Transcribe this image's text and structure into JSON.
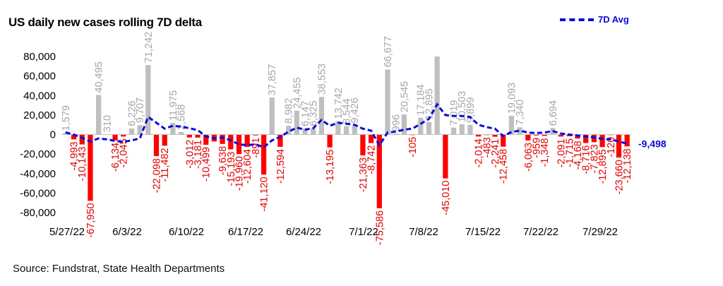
{
  "chart_data": {
    "type": "bar",
    "title": "US daily new cases rolling 7D delta",
    "legend": "7D Avg",
    "source": "Source: Fundstrat, State Health Departments",
    "ylim": [
      -80000,
      80000
    ],
    "yticks": [
      -80000,
      -60000,
      -40000,
      -20000,
      0,
      20000,
      40000,
      60000,
      80000
    ],
    "ytick_labels": [
      "-80,000",
      "-60,000",
      "-40,000",
      "-20,000",
      "0",
      "20,000",
      "40,000",
      "60,000",
      "80,000"
    ],
    "xtick_labels": [
      "5/27/22",
      "6/3/22",
      "6/10/22",
      "6/17/22",
      "6/24/22",
      "7/1/22",
      "7/8/22",
      "7/15/22",
      "7/22/22",
      "7/29/22"
    ],
    "grid": false,
    "legend_position": "top-right",
    "colors": {
      "positive": "#bfbfbf",
      "negative": "#ff0000",
      "avg_line": "#0b0bd9"
    },
    "values": [
      1579,
      -4993,
      -10143,
      -67950,
      40495,
      310,
      -6134,
      -2045,
      6226,
      9707,
      71242,
      -22098,
      -11482,
      11975,
      2568,
      -3012,
      -3181,
      -10499,
      -7100,
      -9638,
      -15193,
      -19960,
      -12604,
      -891,
      -41120,
      37857,
      -12594,
      8982,
      24455,
      6147,
      6325,
      38553,
      -13195,
      13742,
      8544,
      9426,
      -21363,
      -8742,
      -75586,
      66677,
      996,
      20545,
      -105,
      17184,
      12895,
      80000,
      -45010,
      7019,
      10503,
      9899,
      -2014,
      -483,
      -2241,
      -12458,
      19093,
      7340,
      -6063,
      -959,
      -1348,
      6694,
      -2091,
      -1715,
      -4168,
      -8716,
      -7823,
      -12895,
      -120,
      -23660,
      -12138
    ],
    "avg_end_label": "-9,498",
    "avg_line": [
      2200,
      0,
      -3500,
      -7200,
      -4000,
      -5000,
      -6500,
      -7500,
      -6000,
      -4000,
      18000,
      12000,
      6000,
      9000,
      8000,
      6500,
      4500,
      -2000,
      -4000,
      -3000,
      -6000,
      -10000,
      -11000,
      -10000,
      -13000,
      -6000,
      -2500,
      3000,
      7000,
      5000,
      6500,
      15000,
      9000,
      12000,
      11000,
      10000,
      6000,
      4000,
      -11000,
      2000,
      3000,
      5000,
      6000,
      11000,
      16000,
      31000,
      20000,
      19000,
      19000,
      18000,
      10000,
      7500,
      6000,
      -1500,
      2500,
      4000,
      2000,
      1500,
      2000,
      3500,
      1000,
      0,
      -1000,
      -2000,
      -3000,
      -4500,
      -5000,
      -7000,
      -9498
    ],
    "bar_labels": [
      {
        "i": 0,
        "text": "1,579"
      },
      {
        "i": 1,
        "text": "-4,993"
      },
      {
        "i": 2,
        "text": "-10,143"
      },
      {
        "i": 3,
        "text": "-67,950"
      },
      {
        "i": 4,
        "text": "40,495"
      },
      {
        "i": 5,
        "text": "310"
      },
      {
        "i": 6,
        "text": "-6,134"
      },
      {
        "i": 7,
        "text": "-2,045"
      },
      {
        "i": 8,
        "text": "6,226"
      },
      {
        "i": 9,
        "text": "9,707"
      },
      {
        "i": 10,
        "text": "71,242"
      },
      {
        "i": 11,
        "text": "-22,098"
      },
      {
        "i": 12,
        "text": "-11,482"
      },
      {
        "i": 13,
        "text": "11,975"
      },
      {
        "i": 14,
        "text": "2,568"
      },
      {
        "i": 15,
        "text": "-3,012"
      },
      {
        "i": 16,
        "text": "-3,181"
      },
      {
        "i": 17,
        "text": "-10,499"
      },
      {
        "i": 19,
        "text": "-9,638"
      },
      {
        "i": 20,
        "text": "-15,193"
      },
      {
        "i": 21,
        "text": "-19,960"
      },
      {
        "i": 22,
        "text": "-12,604"
      },
      {
        "i": 23,
        "text": "-891"
      },
      {
        "i": 24,
        "text": "-41,120"
      },
      {
        "i": 25,
        "text": "37,857"
      },
      {
        "i": 26,
        "text": "-12,594"
      },
      {
        "i": 27,
        "text": "8,982"
      },
      {
        "i": 28,
        "text": "24,455"
      },
      {
        "i": 29,
        "text": "6,147"
      },
      {
        "i": 30,
        "text": "6,325"
      },
      {
        "i": 31,
        "text": "38,553"
      },
      {
        "i": 32,
        "text": "-13,195"
      },
      {
        "i": 33,
        "text": "13,742"
      },
      {
        "i": 34,
        "text": "8,544"
      },
      {
        "i": 35,
        "text": "9,426"
      },
      {
        "i": 36,
        "text": "-21,363"
      },
      {
        "i": 37,
        "text": "-8,742"
      },
      {
        "i": 38,
        "text": "-75,586"
      },
      {
        "i": 39,
        "text": "66,677"
      },
      {
        "i": 40,
        "text": "996"
      },
      {
        "i": 41,
        "text": "20,545"
      },
      {
        "i": 42,
        "text": "-105"
      },
      {
        "i": 43,
        "text": "17,184"
      },
      {
        "i": 44,
        "text": "12,895"
      },
      {
        "i": 46,
        "text": "-45,010"
      },
      {
        "i": 47,
        "text": "7,019"
      },
      {
        "i": 48,
        "text": "10,503"
      },
      {
        "i": 49,
        "text": "9,899"
      },
      {
        "i": 50,
        "text": "-2,014"
      },
      {
        "i": 51,
        "text": "-483"
      },
      {
        "i": 52,
        "text": "-2,241"
      },
      {
        "i": 53,
        "text": "-12,458"
      },
      {
        "i": 54,
        "text": "19,093"
      },
      {
        "i": 55,
        "text": "7,340"
      },
      {
        "i": 56,
        "text": "-6,063"
      },
      {
        "i": 57,
        "text": "-959"
      },
      {
        "i": 58,
        "text": "-1,348"
      },
      {
        "i": 59,
        "text": "6,694"
      },
      {
        "i": 60,
        "text": "-2,091"
      },
      {
        "i": 61,
        "text": "-1,715"
      },
      {
        "i": 62,
        "text": "-4,168"
      },
      {
        "i": 63,
        "text": "-8,716"
      },
      {
        "i": 64,
        "text": "-7,823"
      },
      {
        "i": 65,
        "text": "-12,895"
      },
      {
        "i": 66,
        "text": "-120"
      },
      {
        "i": 67,
        "text": "-23,660"
      },
      {
        "i": 68,
        "text": "-12,138"
      }
    ]
  }
}
